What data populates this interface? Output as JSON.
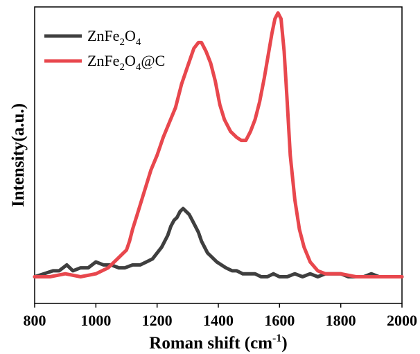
{
  "chart_data": {
    "type": "line",
    "title": "",
    "xlabel": "Roman shift (cm",
    "xlabel_sup": "-1",
    "xlabel_suffix": ")",
    "ylabel": "Intensity(a.u.)",
    "xlim": [
      800,
      2000
    ],
    "ylim": [
      0,
      100
    ],
    "xticks": [
      800,
      1000,
      1200,
      1400,
      1600,
      1800,
      2000
    ],
    "grid": false,
    "legend_position": "top-left",
    "series": [
      {
        "name": "ZnFe2O4",
        "legend_parts": [
          "ZnFe",
          "2",
          "O",
          "4",
          ""
        ],
        "color": "#3f3f3f",
        "x": [
          800,
          830,
          860,
          880,
          905,
          925,
          950,
          975,
          1000,
          1025,
          1050,
          1075,
          1095,
          1120,
          1145,
          1165,
          1185,
          1200,
          1215,
          1225,
          1235,
          1245,
          1255,
          1265,
          1275,
          1285,
          1295,
          1305,
          1315,
          1325,
          1335,
          1345,
          1355,
          1365,
          1375,
          1385,
          1395,
          1410,
          1425,
          1445,
          1460,
          1480,
          1500,
          1520,
          1540,
          1560,
          1580,
          1600,
          1625,
          1650,
          1675,
          1700,
          1725,
          1750,
          1775,
          1800,
          1825,
          1850,
          1875,
          1900,
          1925,
          1950,
          1975,
          2000
        ],
        "y": [
          9,
          10,
          11,
          11,
          13,
          11,
          12,
          12,
          14,
          13,
          13,
          12,
          12,
          13,
          13,
          14,
          15,
          17,
          19,
          21,
          23,
          26,
          28,
          29,
          31,
          32,
          31,
          30,
          28,
          26,
          24,
          21,
          19,
          17,
          16,
          15,
          14,
          13,
          12,
          11,
          11,
          10,
          10,
          10,
          9,
          9,
          10,
          9,
          9,
          10,
          9,
          10,
          9,
          10,
          10,
          10,
          9,
          9,
          9,
          10,
          9,
          9,
          9,
          9
        ]
      },
      {
        "name": "ZnFe2O4@C",
        "legend_parts": [
          "ZnFe",
          "2",
          "O",
          "4",
          "@C"
        ],
        "color": "#e8474d",
        "x": [
          800,
          850,
          900,
          950,
          1000,
          1040,
          1070,
          1090,
          1100,
          1110,
          1120,
          1135,
          1150,
          1165,
          1180,
          1200,
          1220,
          1240,
          1260,
          1280,
          1300,
          1320,
          1335,
          1345,
          1360,
          1375,
          1390,
          1405,
          1420,
          1440,
          1460,
          1475,
          1490,
          1505,
          1520,
          1535,
          1550,
          1565,
          1575,
          1585,
          1595,
          1605,
          1615,
          1625,
          1635,
          1650,
          1665,
          1680,
          1700,
          1725,
          1750,
          1800,
          1850,
          1900,
          1950,
          2000
        ],
        "y": [
          9,
          9,
          10,
          9,
          10,
          12,
          15,
          17,
          18,
          21,
          25,
          30,
          35,
          40,
          45,
          50,
          56,
          61,
          66,
          74,
          80,
          86,
          88,
          88,
          85,
          81,
          75,
          67,
          62,
          58,
          56,
          55,
          55,
          58,
          62,
          68,
          76,
          85,
          91,
          96,
          98,
          96,
          85,
          68,
          50,
          35,
          25,
          19,
          14,
          11,
          10,
          10,
          9,
          9,
          9,
          9
        ]
      }
    ]
  }
}
